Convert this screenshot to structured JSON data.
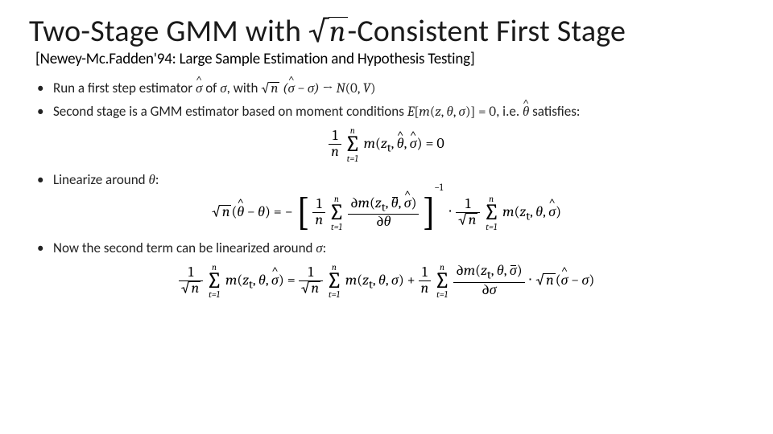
{
  "title": {
    "pre": "Two-Stage GMM with ",
    "sqrt_radicand": "n",
    "post": "-Consistent First Stage"
  },
  "citation": "[Newey-Mc.Fadden'94: Large Sample Estimation and Hypothesis Testing]",
  "bullets": {
    "b1_pre": "Run a first step estimator ",
    "b1_mid": " of ",
    "b1_mid2": ", with ",
    "b2": "Second stage is a GMM estimator based on moment conditions ",
    "b2_post": ", i.e. ",
    "b2_end": " satisfies:",
    "b3": "Linearize around ",
    "b4": "Now the second term can be linearized around "
  },
  "symbols": {
    "sigma": "σ",
    "theta": "θ",
    "sigma_hat": "σ",
    "theta_hat": "θ",
    "theta_bar": "θ",
    "sigma_bar": "σ",
    "n": "n",
    "z": "z",
    "t": "t",
    "m": "m",
    "E": "E",
    "N": "N",
    "V": "V",
    "zero": "0",
    "one": "1",
    "minus1": "−1",
    "arrow": "→",
    "dot": "⋅",
    "partial": "∂"
  },
  "colors": {
    "text": "#000000",
    "bg": "#ffffff"
  },
  "fonts": {
    "title_size": 38,
    "body_size": 17,
    "eq_size": 18
  }
}
